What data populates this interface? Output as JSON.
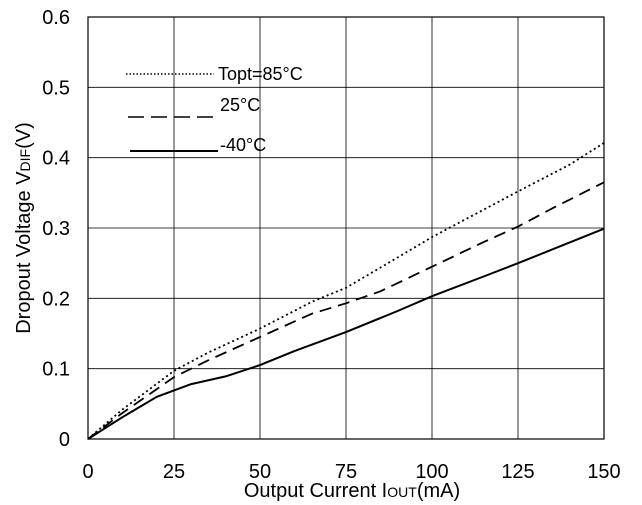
{
  "chart_data": {
    "type": "line",
    "title": "",
    "xlabel": "Output Current IOUT(mA)",
    "xlabel_parts": {
      "prefix": "Output Current I",
      "sub": "OUT",
      "suffix": "(mA)"
    },
    "ylabel": "Dropout Voltage VDIF(V)",
    "ylabel_parts": {
      "prefix": "Dropout Voltage V",
      "sub": "DIF",
      "suffix": "(V)"
    },
    "xlim": [
      0,
      150
    ],
    "ylim": [
      0,
      0.6
    ],
    "x_ticks": [
      0,
      25,
      50,
      75,
      100,
      125,
      150
    ],
    "x_tick_labels": [
      "0",
      "25",
      "50",
      "75",
      "100",
      "125",
      "150"
    ],
    "y_ticks": [
      0,
      0.1,
      0.2,
      0.3,
      0.4,
      0.5,
      0.6
    ],
    "y_tick_labels": [
      "0",
      "0.1",
      "0.2",
      "0.3",
      "0.4",
      "0.5",
      "0.6"
    ],
    "grid": true,
    "legend_position": "top-left",
    "series": [
      {
        "name": "Topt=85°C",
        "line_style": "dotted",
        "color": "#000000",
        "x": [
          0,
          10,
          25,
          35,
          50,
          65,
          75,
          90,
          100,
          115,
          125,
          140,
          150
        ],
        "y": [
          0,
          0.042,
          0.097,
          0.123,
          0.157,
          0.195,
          0.215,
          0.258,
          0.287,
          0.326,
          0.352,
          0.39,
          0.421
        ]
      },
      {
        "name": "25°C",
        "line_style": "dashed",
        "color": "#000000",
        "x": [
          0,
          10,
          25,
          35,
          50,
          65,
          75,
          85,
          100,
          115,
          125,
          135,
          150
        ],
        "y": [
          0,
          0.037,
          0.088,
          0.112,
          0.145,
          0.178,
          0.193,
          0.21,
          0.245,
          0.28,
          0.302,
          0.328,
          0.365
        ]
      },
      {
        "name": "-40°C",
        "line_style": "solid",
        "color": "#000000",
        "x": [
          0,
          10,
          20,
          30,
          40,
          50,
          60,
          75,
          90,
          100,
          115,
          125,
          150
        ],
        "y": [
          0,
          0.031,
          0.06,
          0.078,
          0.089,
          0.105,
          0.125,
          0.152,
          0.182,
          0.203,
          0.231,
          0.25,
          0.299
        ]
      }
    ]
  }
}
